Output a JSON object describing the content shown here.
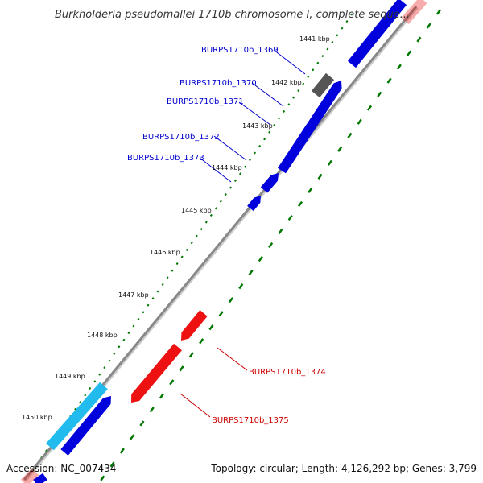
{
  "title": "Burkholderia pseudomallei 1710b chromosome I, complete seque...",
  "footer": {
    "accession": "Accession: NC_007434",
    "summary": "Topology: circular; Length: 4,126,292 bp; Genes: 3,799"
  },
  "colors": {
    "forward_gene": "#0000dd",
    "reverse_gene": "#ee1111",
    "other_gene": "#555555",
    "cyan_gene": "#22bbee",
    "backbone": "#888888",
    "tick": "#007700",
    "forward_label": "#0000cc",
    "reverse_label": "#cc0000"
  },
  "scale_labels": [
    "1441 kbp",
    "1442 kbp",
    "1443 kbp",
    "1444 kbp",
    "1445 kbp",
    "1446 kbp",
    "1447 kbp",
    "1448 kbp",
    "1449 kbp",
    "1450 kbp"
  ],
  "gene_labels": {
    "forward": [
      "BURPS1710b_1369",
      "BURPS1710b_1370",
      "BURPS1710b_1371",
      "BURPS1710b_1372",
      "BURPS1710b_1373"
    ],
    "reverse": [
      "BURPS1710b_1374",
      "BURPS1710b_1375"
    ]
  }
}
